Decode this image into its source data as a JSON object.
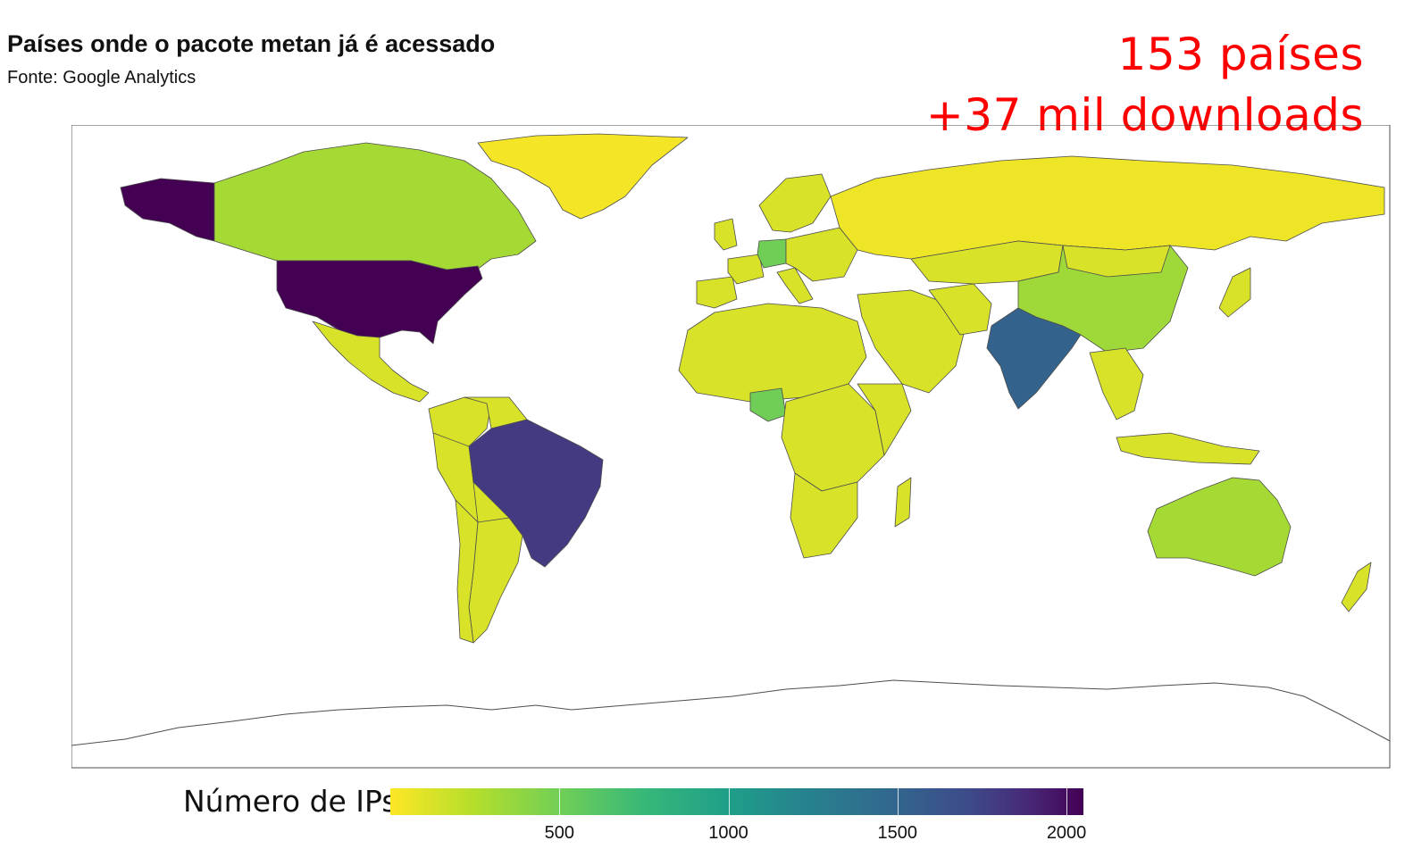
{
  "header": {
    "title": "Países onde o pacote metan já é acessado",
    "subtitle": "Fonte: Google Analytics"
  },
  "annotations": {
    "countries": "153 países",
    "downloads": "+37 mil downloads"
  },
  "legend": {
    "title": "Número de IPs",
    "ticks": [
      "500",
      "1000",
      "1500",
      "2000"
    ],
    "tick_values": [
      500,
      1000,
      1500,
      2000
    ],
    "range": [
      0,
      2050
    ],
    "palette": [
      "#fde725",
      "#b5de2b",
      "#6ece58",
      "#35b779",
      "#1f9e89",
      "#26828e",
      "#31688e",
      "#3e4989",
      "#482878",
      "#440154"
    ]
  },
  "colors": {
    "annotation_text": "#ff0000",
    "no_data": "#ffffff",
    "border": "#4d4d4d"
  },
  "regions": [
    {
      "name": "United States",
      "level": 2050
    },
    {
      "name": "Alaska",
      "level": 2050
    },
    {
      "name": "Brazil",
      "level": 1700
    },
    {
      "name": "India",
      "level": 1400
    },
    {
      "name": "Canada",
      "level": 280
    },
    {
      "name": "China",
      "level": 300
    },
    {
      "name": "Australia",
      "level": 280
    },
    {
      "name": "Germany",
      "level": 450
    },
    {
      "name": "Nigeria",
      "level": 450
    },
    {
      "name": "Russia",
      "level": 50
    },
    {
      "name": "Greenland",
      "level": 30
    }
  ]
}
